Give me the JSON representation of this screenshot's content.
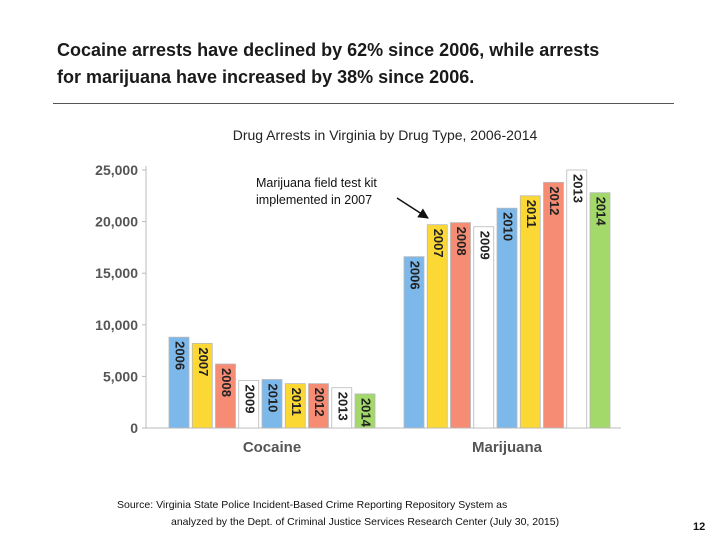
{
  "headline": {
    "line1": "Cocaine arrests have declined by 62% since 2006, while arrests",
    "line2": "for marijuana have increased by 38% since 2006."
  },
  "chart_data": {
    "type": "bar",
    "title": "Drug Arrests in  Virginia by Drug Type, 2006-2014",
    "categories": [
      "Cocaine",
      "Marijuana"
    ],
    "series_years": [
      "2006",
      "2007",
      "2008",
      "2009",
      "2010",
      "2011",
      "2012",
      "2013",
      "2014"
    ],
    "series_colors": [
      "#7cb8ea",
      "#fcd835",
      "#f68c74",
      "#ffffff",
      "#7cb8ea",
      "#fcd835",
      "#f68c74",
      "#ffffff",
      "#a3d86a"
    ],
    "values": {
      "Cocaine": [
        8800,
        8200,
        6200,
        4600,
        4700,
        4300,
        4300,
        3900,
        3300
      ],
      "Marijuana": [
        16600,
        19700,
        19900,
        19500,
        21300,
        22500,
        23800,
        25000,
        22800
      ]
    },
    "ylim": [
      0,
      25000
    ],
    "yticks": [
      "0",
      "5,000",
      "10,000",
      "15,000",
      "20,000",
      "25,000"
    ],
    "ytick_values": [
      0,
      5000,
      10000,
      15000,
      20000,
      25000
    ],
    "xlabel": "",
    "ylabel": "",
    "annotation": {
      "line1": "Marijuana field test kit",
      "line2": "implemented in 2007"
    }
  },
  "source": {
    "line1": "Source:  Virginia State Police Incident-Based Crime Reporting Repository System as",
    "line2": "analyzed by the Dept. of Criminal Justice Services Research Center (July 30, 2015)"
  },
  "page_number": "12"
}
